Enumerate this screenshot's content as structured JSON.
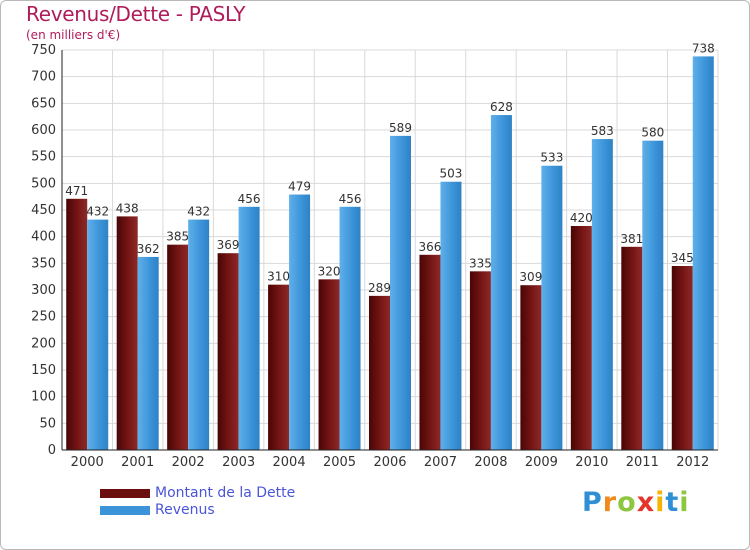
{
  "chart_data": {
    "type": "bar",
    "title": "Revenus/Dette - PASLY",
    "subtitle": "(en milliers d'€)",
    "categories": [
      "2000",
      "2001",
      "2002",
      "2003",
      "2004",
      "2005",
      "2006",
      "2007",
      "2008",
      "2009",
      "2010",
      "2011",
      "2012"
    ],
    "series": [
      {
        "name": "Montant de la Dette",
        "color": "#6b0e0e",
        "values": [
          471,
          438,
          385,
          369,
          310,
          320,
          289,
          366,
          335,
          309,
          420,
          381,
          345
        ]
      },
      {
        "name": "Revenus",
        "color": "#3b93d8",
        "values": [
          432,
          362,
          432,
          456,
          479,
          456,
          589,
          503,
          628,
          533,
          583,
          580,
          738
        ]
      }
    ],
    "ylim": [
      0,
      750
    ],
    "yticks": [
      0,
      50,
      100,
      150,
      200,
      250,
      300,
      350,
      400,
      450,
      500,
      550,
      600,
      650,
      700,
      750
    ],
    "grid": true,
    "legend_position": "bottom-left",
    "xlabel": "",
    "ylabel": ""
  },
  "logo": {
    "letters": [
      "P",
      "r",
      "o",
      "x",
      "i",
      "t",
      "i"
    ],
    "colors": [
      "#2f8fd6",
      "#f08a1d",
      "#8dc63f",
      "#e5352b",
      "#f4b400",
      "#2f8fd6",
      "#8dc63f"
    ]
  }
}
